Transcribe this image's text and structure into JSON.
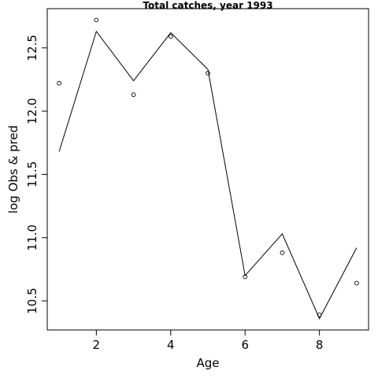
{
  "chart_data": {
    "type": "line",
    "title": "Total catches, year 1993",
    "xlabel": "Age",
    "ylabel": "log Obs & pred",
    "xlim": [
      0.68,
      9.32
    ],
    "ylim": [
      10.27,
      12.81
    ],
    "x_ticks": [
      2,
      4,
      6,
      8
    ],
    "x_tick_labels": [
      "2",
      "4",
      "6",
      "8"
    ],
    "y_ticks": [
      10.5,
      11.0,
      11.5,
      12.0,
      12.5
    ],
    "y_tick_labels": [
      "10.5",
      "11.0",
      "11.5",
      "12.0",
      "12.5"
    ],
    "grid": false,
    "series": [
      {
        "style": "line",
        "color": "#000000",
        "x": [
          1,
          2,
          3,
          4,
          5,
          6,
          7,
          8,
          9
        ],
        "y": [
          11.68,
          12.63,
          12.24,
          12.62,
          12.33,
          10.7,
          11.03,
          10.36,
          10.92
        ]
      },
      {
        "style": "points",
        "marker": "open-circle",
        "color": "#000000",
        "x": [
          1,
          2,
          3,
          4,
          5,
          6,
          7,
          8,
          9
        ],
        "y": [
          12.22,
          12.72,
          12.13,
          12.59,
          12.3,
          10.69,
          10.88,
          10.39,
          10.64
        ]
      }
    ]
  }
}
